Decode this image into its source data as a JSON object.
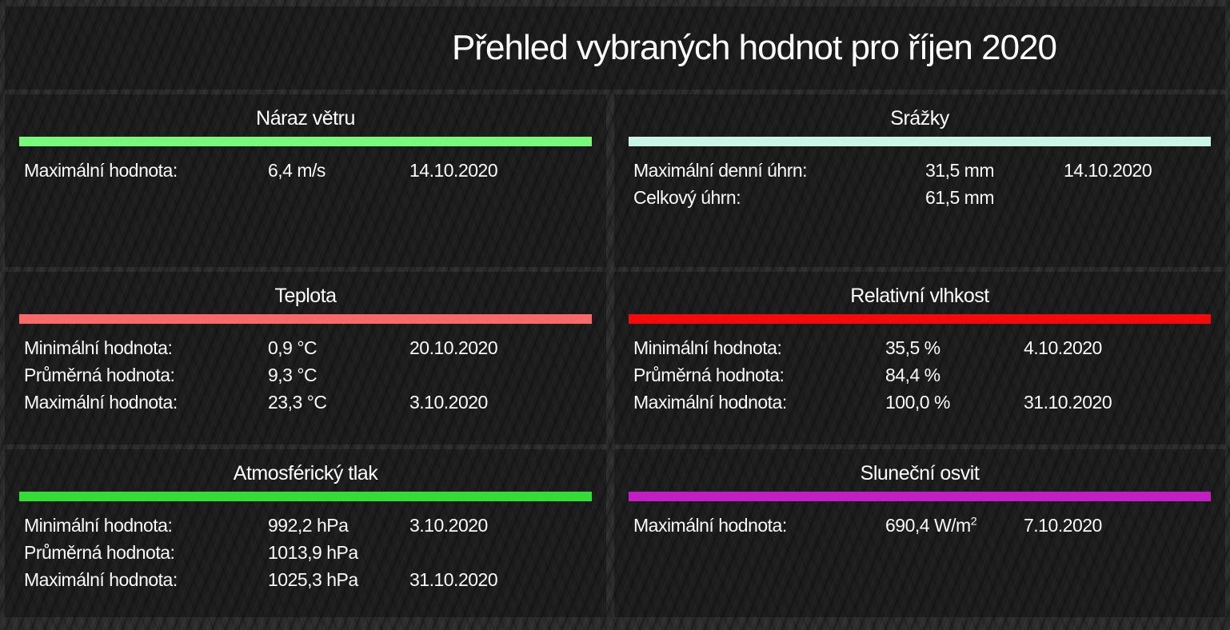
{
  "page": {
    "title": "Přehled vybraných hodnot pro říjen 2020"
  },
  "panels": [
    {
      "id": "wind-gust",
      "title": "Náraz větru",
      "bar_color": "#7bf87b",
      "rows": [
        {
          "label": "Maximální hodnota:",
          "value": "6,4 m/s",
          "date": "14.10.2020"
        }
      ]
    },
    {
      "id": "precipitation",
      "title": "Srážky",
      "bar_color": "#cbf5e4",
      "rows": [
        {
          "label": "Maximální denní úhrn:",
          "value": "31,5 mm",
          "date": "14.10.2020"
        },
        {
          "label": "Celkový úhrn:",
          "value": "61,5 mm",
          "date": ""
        }
      ]
    },
    {
      "id": "temperature",
      "title": "Teplota",
      "bar_color": "#f86a6a",
      "rows": [
        {
          "label": "Minimální hodnota:",
          "value": "0,9 °C",
          "date": "20.10.2020"
        },
        {
          "label": "Průměrná hodnota:",
          "value": "9,3 °C",
          "date": ""
        },
        {
          "label": "Maximální hodnota:",
          "value": "23,3 °C",
          "date": "3.10.2020"
        }
      ]
    },
    {
      "id": "relative-humidity",
      "title": "Relativní vlhkost",
      "bar_color": "#f30b0b",
      "rows": [
        {
          "label": "Minimální hodnota:",
          "value": "35,5 %",
          "date": "4.10.2020"
        },
        {
          "label": "Průměrná hodnota:",
          "value": "84,4 %",
          "date": ""
        },
        {
          "label": "Maximální hodnota:",
          "value": "100,0 %",
          "date": "31.10.2020"
        }
      ]
    },
    {
      "id": "atmospheric-pressure",
      "title": "Atmosférický tlak",
      "bar_color": "#36dc36",
      "rows": [
        {
          "label": "Minimální hodnota:",
          "value": "992,2 hPa",
          "date": "3.10.2020"
        },
        {
          "label": "Průměrná hodnota:",
          "value": "1013,9 hPa",
          "date": ""
        },
        {
          "label": "Maximální hodnota:",
          "value": "1025,3 hPa",
          "date": "31.10.2020"
        }
      ]
    },
    {
      "id": "solar-irradiance",
      "title": "Sluneční osvit",
      "bar_color": "#c11ec4",
      "rows": [
        {
          "label": "Maximální hodnota:",
          "value": "690,4 W/m",
          "value_sup": "2",
          "date": "7.10.2020"
        }
      ]
    }
  ]
}
